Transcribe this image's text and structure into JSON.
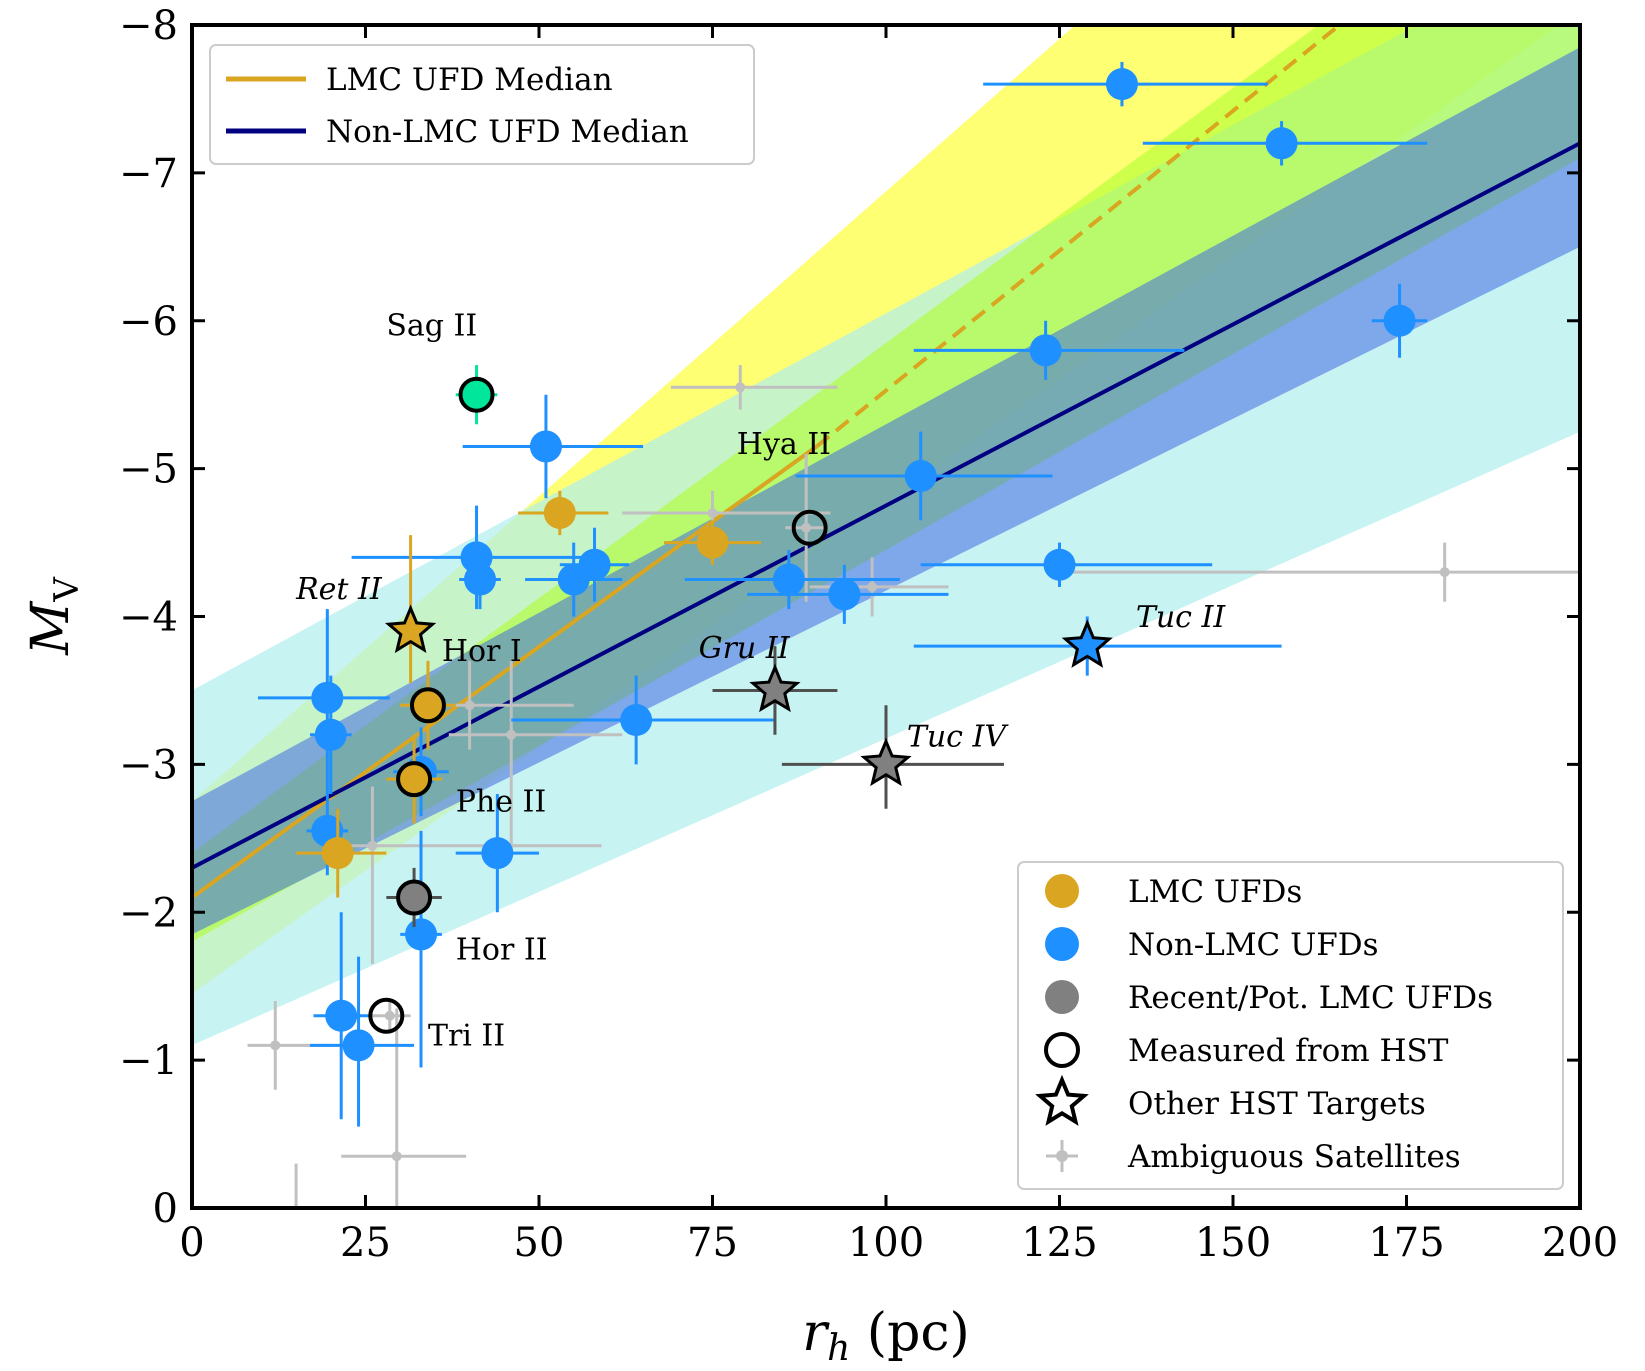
{
  "chart_data": {
    "type": "scatter",
    "xlabel": "r_h (pc)",
    "xlabel_main": "r",
    "xlabel_sub": "h",
    "xlabel_unit": " (pc)",
    "ylabel": "M_V",
    "ylabel_main": "M",
    "ylabel_sub": "V",
    "xlim": [
      0,
      200
    ],
    "ylim": [
      0,
      -8
    ],
    "xticks": [
      0,
      25,
      50,
      75,
      100,
      125,
      150,
      175,
      200
    ],
    "yticks": [
      0,
      -1,
      -2,
      -3,
      -4,
      -5,
      -6,
      -7,
      -8
    ],
    "colors": {
      "lmc": "#daa520",
      "nonlmc": "#1e90ff",
      "gray": "#808080",
      "ambiguous": "#c0c0c0",
      "sagii": "#00e69a",
      "lmc_median": "#daa520",
      "nonlmc_median": "#000080",
      "band_lmc_outer": "#ffff00",
      "band_lmc_inner": "#adff2f",
      "band_nonlmc_outer": "#afeeee",
      "band_nonlmc_inner": "#4169e1"
    },
    "median_lines": [
      {
        "name": "LMC UFD Median",
        "x": [
          0,
          90
        ],
        "y": [
          -2.1,
          -5.15
        ],
        "dashed_x": [
          90,
          168
        ],
        "dashed_y": [
          -5.15,
          -8.1
        ]
      },
      {
        "name": "Non-LMC UFD Median",
        "x": [
          0,
          200
        ],
        "y": [
          -2.3,
          -7.2
        ]
      }
    ],
    "bands": [
      {
        "name": "lmc-outer",
        "x0": 0,
        "x1": 200,
        "lower0": -1.45,
        "upper0": -2.75,
        "lower1": -8.1,
        "upper1": -11.0
      },
      {
        "name": "nonlmc-outer",
        "x0": 0,
        "x1": 200,
        "lower0": -1.1,
        "upper0": -3.5,
        "lower1": -5.25,
        "upper1": -8.6
      },
      {
        "name": "lmc-inner",
        "x0": 0,
        "x1": 200,
        "lower0": -1.8,
        "upper0": -2.4,
        "lower1": -7.1,
        "upper1": -9.3
      },
      {
        "name": "nonlmc-inner",
        "x0": 0,
        "x1": 200,
        "lower0": -1.85,
        "upper0": -2.75,
        "lower1": -6.5,
        "upper1": -7.85
      }
    ],
    "ambiguous": [
      {
        "x": 12,
        "y": -1.1,
        "xerr": [
          4,
          8
        ],
        "yerr": [
          0.3,
          0.3
        ]
      },
      {
        "x": 29.5,
        "y": -0.35,
        "xerr": [
          8,
          10
        ],
        "yerr": [
          0.9,
          1.0
        ]
      },
      {
        "x": 15,
        "y": 0.05,
        "xerr": [
          0,
          0
        ],
        "yerr": [
          0.4,
          0.35
        ]
      },
      {
        "x": 28.5,
        "y": -1.3,
        "xerr": [
          3,
          3
        ],
        "yerr": [
          0.1,
          0.1
        ]
      },
      {
        "x": 46,
        "y": -3.2,
        "xerr": [
          9,
          16
        ],
        "yerr": [
          0.8,
          0.5
        ]
      },
      {
        "x": 26,
        "y": -2.45,
        "xerr": [
          6,
          33
        ],
        "yerr": [
          0.8,
          0.4
        ]
      },
      {
        "x": 79,
        "y": -5.55,
        "xerr": [
          10,
          14
        ],
        "yerr": [
          0.15,
          0.15
        ]
      },
      {
        "x": 75,
        "y": -4.7,
        "xerr": [
          13,
          17
        ],
        "yerr": [
          0.15,
          0.15
        ]
      },
      {
        "x": 98,
        "y": -4.2,
        "xerr": [
          9,
          11
        ],
        "yerr": [
          0.2,
          0.2
        ]
      },
      {
        "x": 180.5,
        "y": -4.3,
        "xerr": [
          57,
          20
        ],
        "yerr": [
          0.2,
          0.2
        ]
      },
      {
        "x": 88.5,
        "y": -4.6,
        "xerr": [
          3,
          3
        ],
        "yerr": [
          0.5,
          0.5
        ]
      },
      {
        "x": 40,
        "y": -3.4,
        "xerr": [
          10,
          15
        ],
        "yerr": [
          0.3,
          0.3
        ]
      }
    ],
    "nonlmc": [
      {
        "x": 134,
        "y": -7.6,
        "xerr": [
          20,
          21
        ],
        "yerr": [
          0.15,
          0.15
        ]
      },
      {
        "x": 157,
        "y": -7.2,
        "xerr": [
          20,
          21
        ],
        "yerr": [
          0.15,
          0.15
        ]
      },
      {
        "x": 174,
        "y": -6.0,
        "xerr": [
          4,
          4
        ],
        "yerr": [
          0.25,
          0.25
        ]
      },
      {
        "x": 123,
        "y": -5.8,
        "xerr": [
          19,
          20
        ],
        "yerr": [
          0.2,
          0.2
        ]
      },
      {
        "x": 51,
        "y": -5.15,
        "xerr": [
          12,
          14
        ],
        "yerr": [
          0.35,
          0.35
        ]
      },
      {
        "x": 105,
        "y": -4.95,
        "xerr": [
          18,
          19
        ],
        "yerr": [
          0.3,
          0.3
        ]
      },
      {
        "x": 41,
        "y": -4.4,
        "xerr": [
          18,
          19
        ],
        "yerr": [
          0.35,
          0.35
        ]
      },
      {
        "x": 41.5,
        "y": -4.25,
        "xerr": [
          3,
          3
        ],
        "yerr": [
          0.2,
          0.2
        ]
      },
      {
        "x": 55,
        "y": -4.25,
        "xerr": [
          7,
          7
        ],
        "yerr": [
          0.25,
          0.25
        ]
      },
      {
        "x": 58,
        "y": -4.35,
        "xerr": [
          5,
          5
        ],
        "yerr": [
          0.25,
          0.25
        ]
      },
      {
        "x": 125,
        "y": -4.35,
        "xerr": [
          20,
          22
        ],
        "yerr": [
          0.15,
          0.15
        ]
      },
      {
        "x": 86,
        "y": -4.25,
        "xerr": [
          15,
          16
        ],
        "yerr": [
          0.2,
          0.2
        ]
      },
      {
        "x": 94,
        "y": -4.15,
        "xerr": [
          14,
          15
        ],
        "yerr": [
          0.2,
          0.2
        ]
      },
      {
        "x": 64,
        "y": -3.3,
        "xerr": [
          18,
          20
        ],
        "yerr": [
          0.3,
          0.3
        ]
      },
      {
        "x": 19.5,
        "y": -3.45,
        "xerr": [
          10,
          9
        ],
        "yerr": [
          0.6,
          0.6
        ]
      },
      {
        "x": 20,
        "y": -3.2,
        "xerr": [
          3,
          3
        ],
        "yerr": [
          0.4,
          0.4
        ]
      },
      {
        "x": 19.5,
        "y": -2.55,
        "xerr": [
          3,
          3
        ],
        "yerr": [
          0.3,
          0.3
        ]
      },
      {
        "x": 33,
        "y": -2.95,
        "xerr": [
          4,
          4
        ],
        "yerr": [
          0.3,
          0.3
        ]
      },
      {
        "x": 44,
        "y": -2.4,
        "xerr": [
          6,
          6
        ],
        "yerr": [
          0.4,
          0.4
        ]
      },
      {
        "x": 33,
        "y": -1.85,
        "xerr": [
          3,
          3
        ],
        "yerr": [
          0.9,
          0.7
        ]
      },
      {
        "x": 21.5,
        "y": -1.3,
        "xerr": [
          4,
          4
        ],
        "yerr": [
          0.7,
          0.7
        ]
      },
      {
        "x": 24,
        "y": -1.1,
        "xerr": [
          7,
          8
        ],
        "yerr": [
          0.55,
          0.6
        ]
      }
    ],
    "lmc": [
      {
        "x": 53,
        "y": -4.7,
        "xerr": [
          6,
          7
        ],
        "yerr": [
          0.15,
          0.15
        ]
      },
      {
        "x": 75,
        "y": -4.5,
        "xerr": [
          7,
          7
        ],
        "yerr": [
          0.15,
          0.15
        ]
      },
      {
        "x": 21,
        "y": -2.4,
        "xerr": [
          6,
          7
        ],
        "yerr": [
          0.3,
          0.3
        ]
      }
    ],
    "measured_circles": [
      {
        "x": 34,
        "y": -3.4,
        "fill": "#daa520",
        "xerr": [
          4,
          4
        ],
        "yerr": [
          0.3,
          0.3
        ]
      },
      {
        "x": 32,
        "y": -2.9,
        "fill": "#daa520",
        "xerr": [
          4,
          4
        ],
        "yerr": [
          0.3,
          0.3
        ]
      },
      {
        "x": 32,
        "y": -2.1,
        "fill": "#808080",
        "xerr": [
          4,
          4
        ],
        "yerr": [
          0.2,
          0.2
        ]
      },
      {
        "x": 41,
        "y": -5.5,
        "fill": "#00e69a",
        "xerr": [
          3,
          3
        ],
        "yerr": [
          0.2,
          0.2
        ]
      },
      {
        "x": 89,
        "y": -4.6,
        "fill": "none",
        "xerr": [
          0,
          0
        ],
        "yerr": [
          0,
          0
        ]
      },
      {
        "x": 28,
        "y": -1.3,
        "fill": "none",
        "xerr": [
          0,
          0
        ],
        "yerr": [
          0,
          0
        ]
      }
    ],
    "stars": [
      {
        "x": 31.5,
        "y": -3.9,
        "fill": "#daa520",
        "ecolor": "#daa520",
        "xerr": [
          0,
          0
        ],
        "yerr": [
          0.35,
          0.65
        ]
      },
      {
        "x": 84,
        "y": -3.5,
        "fill": "#808080",
        "ecolor": "#505050",
        "xerr": [
          9,
          9
        ],
        "yerr": [
          0.3,
          0.3
        ]
      },
      {
        "x": 100,
        "y": -3.0,
        "fill": "#808080",
        "ecolor": "#505050",
        "xerr": [
          15,
          17
        ],
        "yerr": [
          0.3,
          0.4
        ]
      },
      {
        "x": 129,
        "y": -3.8,
        "fill": "#1e90ff",
        "ecolor": "#1e90ff",
        "xerr": [
          25,
          28
        ],
        "yerr": [
          0.2,
          0.2
        ]
      }
    ],
    "annotations": [
      {
        "text": "Sag II",
        "x": 28,
        "y": -5.9,
        "italic": false
      },
      {
        "text": "Hya II",
        "x": 78.5,
        "y": -5.1,
        "italic": false
      },
      {
        "text": "Ret II",
        "x": 15,
        "y": -4.12,
        "italic": true
      },
      {
        "text": "Hor I",
        "x": 36,
        "y": -3.7,
        "italic": false
      },
      {
        "text": "Gru II",
        "x": 73,
        "y": -3.72,
        "italic": true
      },
      {
        "text": "Tuc II",
        "x": 136,
        "y": -3.93,
        "italic": true
      },
      {
        "text": "Tuc IV",
        "x": 103,
        "y": -3.12,
        "italic": true
      },
      {
        "text": "Phe II",
        "x": 38,
        "y": -2.68,
        "italic": false
      },
      {
        "text": "Hor II",
        "x": 38,
        "y": -1.68,
        "italic": false
      },
      {
        "text": "Tri II",
        "x": 34,
        "y": -1.1,
        "italic": false
      }
    ],
    "legend_top": {
      "position": "top-left",
      "entries": [
        "LMC UFD Median",
        "Non-LMC UFD Median"
      ]
    },
    "legend_bottom": {
      "position": "bottom-right",
      "entries": [
        "LMC UFDs",
        "Non-LMC UFDs",
        "Recent/Pot. LMC UFDs",
        "Measured from HST",
        "Other HST Targets",
        "Ambiguous Satellites"
      ]
    }
  }
}
